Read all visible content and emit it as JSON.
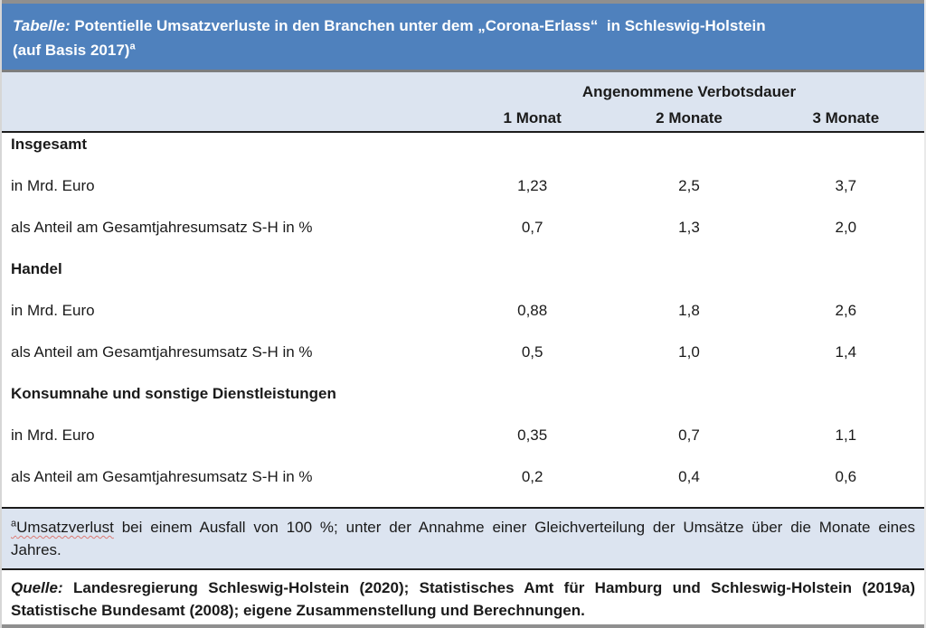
{
  "colors": {
    "accent_blue": "#4f81bd",
    "band_blue": "#dce4f0",
    "rule_black": "#1c1c1c",
    "strip_gray": "#8f8f8f",
    "squiggle_red": "#dd7a74"
  },
  "title": {
    "prefix": "Tabelle:",
    "line1": "Potentielle Umsatzverluste in den Branchen unter dem „Corona-Erlass“  in Schleswig-Holstein",
    "line2_base": "(auf Basis 2017)",
    "footnote_marker": "a"
  },
  "table": {
    "header_group": "Angenommene Verbotsdauer",
    "columns": [
      "1 Monat",
      "2 Monate",
      "3 Monate"
    ],
    "sections": [
      {
        "heading": "Insgesamt",
        "rows": [
          {
            "label": "in Mrd. Euro",
            "values": [
              "1,23",
              "2,5",
              "3,7"
            ]
          },
          {
            "label": "als Anteil am Gesamtjahresumsatz S-H in %",
            "values": [
              "0,7",
              "1,3",
              "2,0"
            ]
          }
        ]
      },
      {
        "heading": "Handel",
        "rows": [
          {
            "label": "in Mrd. Euro",
            "values": [
              "0,88",
              "1,8",
              "2,6"
            ]
          },
          {
            "label": "als Anteil am Gesamtjahresumsatz S-H in %",
            "values": [
              "0,5",
              "1,0",
              "1,4"
            ]
          }
        ]
      },
      {
        "heading": "Konsumnahe und sonstige Dienstleistungen",
        "rows": [
          {
            "label": "in Mrd. Euro",
            "values": [
              "0,35",
              "0,7",
              "1,1"
            ]
          },
          {
            "label": "als Anteil am Gesamtjahresumsatz S-H in %",
            "values": [
              "0,2",
              "0,4",
              "0,6"
            ]
          }
        ]
      }
    ]
  },
  "footnote": {
    "marker": "a",
    "marked_word": "Umsatzverlust",
    "line1_rest": " bei einem Ausfall von 100 %; unter der Annahme einer Gleichverteilung der Umsätze über die Monate eines",
    "line2": "Jahres."
  },
  "source": {
    "prefix": "Quelle:",
    "line1": "Landesregierung Schleswig-Holstein (2020); Statistisches Amt für Hamburg und Schleswig-Holstein (2019a)",
    "line2": "Statistische Bundesamt (2008); eigene Zusammenstellung und Berechnungen."
  }
}
